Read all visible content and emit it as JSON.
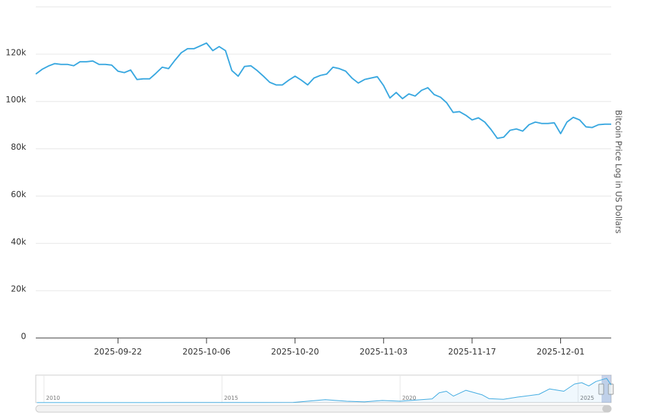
{
  "chart_data": [
    {
      "type": "line",
      "ylabel": "Bitcoin Price Log in US Dollars",
      "color": "#3aa8e0",
      "grid": true,
      "x": [
        "2025-09-09",
        "2025-09-10",
        "2025-09-11",
        "2025-09-12",
        "2025-09-13",
        "2025-09-14",
        "2025-09-15",
        "2025-09-16",
        "2025-09-17",
        "2025-09-18",
        "2025-09-19",
        "2025-09-20",
        "2025-09-21",
        "2025-09-22",
        "2025-09-23",
        "2025-09-24",
        "2025-09-25",
        "2025-09-26",
        "2025-09-27",
        "2025-09-28",
        "2025-09-29",
        "2025-09-30",
        "2025-10-01",
        "2025-10-02",
        "2025-10-03",
        "2025-10-04",
        "2025-10-05",
        "2025-10-06",
        "2025-10-07",
        "2025-10-08",
        "2025-10-09",
        "2025-10-10",
        "2025-10-11",
        "2025-10-12",
        "2025-10-13",
        "2025-10-14",
        "2025-10-15",
        "2025-10-16",
        "2025-10-17",
        "2025-10-18",
        "2025-10-19",
        "2025-10-20",
        "2025-10-21",
        "2025-10-22",
        "2025-10-23",
        "2025-10-24",
        "2025-10-25",
        "2025-10-26",
        "2025-10-27",
        "2025-10-28",
        "2025-10-29",
        "2025-10-30",
        "2025-10-31",
        "2025-11-01",
        "2025-11-02",
        "2025-11-03",
        "2025-11-04",
        "2025-11-05",
        "2025-11-06",
        "2025-11-07",
        "2025-11-08",
        "2025-11-09",
        "2025-11-10",
        "2025-11-11",
        "2025-11-12",
        "2025-11-13",
        "2025-11-14",
        "2025-11-15",
        "2025-11-16",
        "2025-11-17",
        "2025-11-18",
        "2025-11-19",
        "2025-11-20",
        "2025-11-21",
        "2025-11-22",
        "2025-11-23",
        "2025-11-24",
        "2025-11-25",
        "2025-11-26",
        "2025-11-27",
        "2025-11-28",
        "2025-11-29",
        "2025-11-30",
        "2025-12-01",
        "2025-12-02",
        "2025-12-03",
        "2025-12-04",
        "2025-12-05",
        "2025-12-06",
        "2025-12-07",
        "2025-12-08",
        "2025-12-09"
      ],
      "values": [
        111600,
        113600,
        115000,
        116000,
        115700,
        115700,
        115100,
        116800,
        116800,
        117100,
        115700,
        115700,
        115400,
        112800,
        112200,
        113300,
        109300,
        109600,
        109600,
        111900,
        114500,
        113900,
        117400,
        120600,
        122300,
        122300,
        123500,
        124700,
        121500,
        123200,
        121500,
        113100,
        110700,
        114800,
        115100,
        113100,
        110700,
        108100,
        107000,
        107000,
        109000,
        110700,
        109000,
        107000,
        109900,
        111000,
        111600,
        114500,
        113900,
        112800,
        109900,
        107800,
        109300,
        109900,
        110500,
        106700,
        101500,
        103800,
        101200,
        103200,
        102300,
        104700,
        105800,
        102900,
        101800,
        99400,
        95400,
        95700,
        94200,
        92200,
        93100,
        91300,
        88100,
        84400,
        84900,
        87800,
        88400,
        87500,
        90200,
        91300,
        90700,
        90700,
        91000,
        86400,
        91300,
        93300,
        92200,
        89300,
        89000,
        90200,
        90400,
        90400
      ],
      "xlim": [
        "2025-09-09",
        "2025-12-09"
      ],
      "xticks": [
        "2025-09-22",
        "2025-10-06",
        "2025-10-20",
        "2025-11-03",
        "2025-11-17",
        "2025-12-01"
      ],
      "ylim": [
        0,
        140000
      ],
      "yticks": [
        0,
        {
          "value": 20000,
          "label": "20k"
        },
        {
          "value": 40000,
          "label": "40k"
        },
        {
          "value": 60000,
          "label": "60k"
        },
        {
          "value": 80000,
          "label": "80k"
        },
        {
          "value": 100000,
          "label": "100k"
        },
        {
          "value": 120000,
          "label": "120k"
        },
        {
          "value": 140000,
          "label": ""
        }
      ]
    },
    {
      "type": "line",
      "color": "#3aa8e0",
      "x": [
        2009.8,
        2013,
        2014,
        2016,
        2017,
        2017.9,
        2018.5,
        2019,
        2019.5,
        2020,
        2020.9,
        2021.1,
        2021.3,
        2021.5,
        2021.85,
        2022.3,
        2022.5,
        2022.9,
        2023.3,
        2023.9,
        2024.2,
        2024.6,
        2024.9,
        2025.1,
        2025.3,
        2025.5,
        2025.8,
        2025.93
      ],
      "values": [
        0,
        100,
        500,
        400,
        1000,
        15000,
        7000,
        3700,
        11000,
        7000,
        19000,
        50000,
        58000,
        33000,
        63000,
        40000,
        20000,
        16500,
        28000,
        42000,
        70000,
        58000,
        95000,
        102000,
        85000,
        108000,
        124000,
        90000
      ],
      "xlim": [
        2009.77,
        2025.93
      ],
      "ylim": [
        0,
        130000
      ],
      "xticks": [
        2010,
        2015,
        2020,
        2025
      ]
    }
  ]
}
